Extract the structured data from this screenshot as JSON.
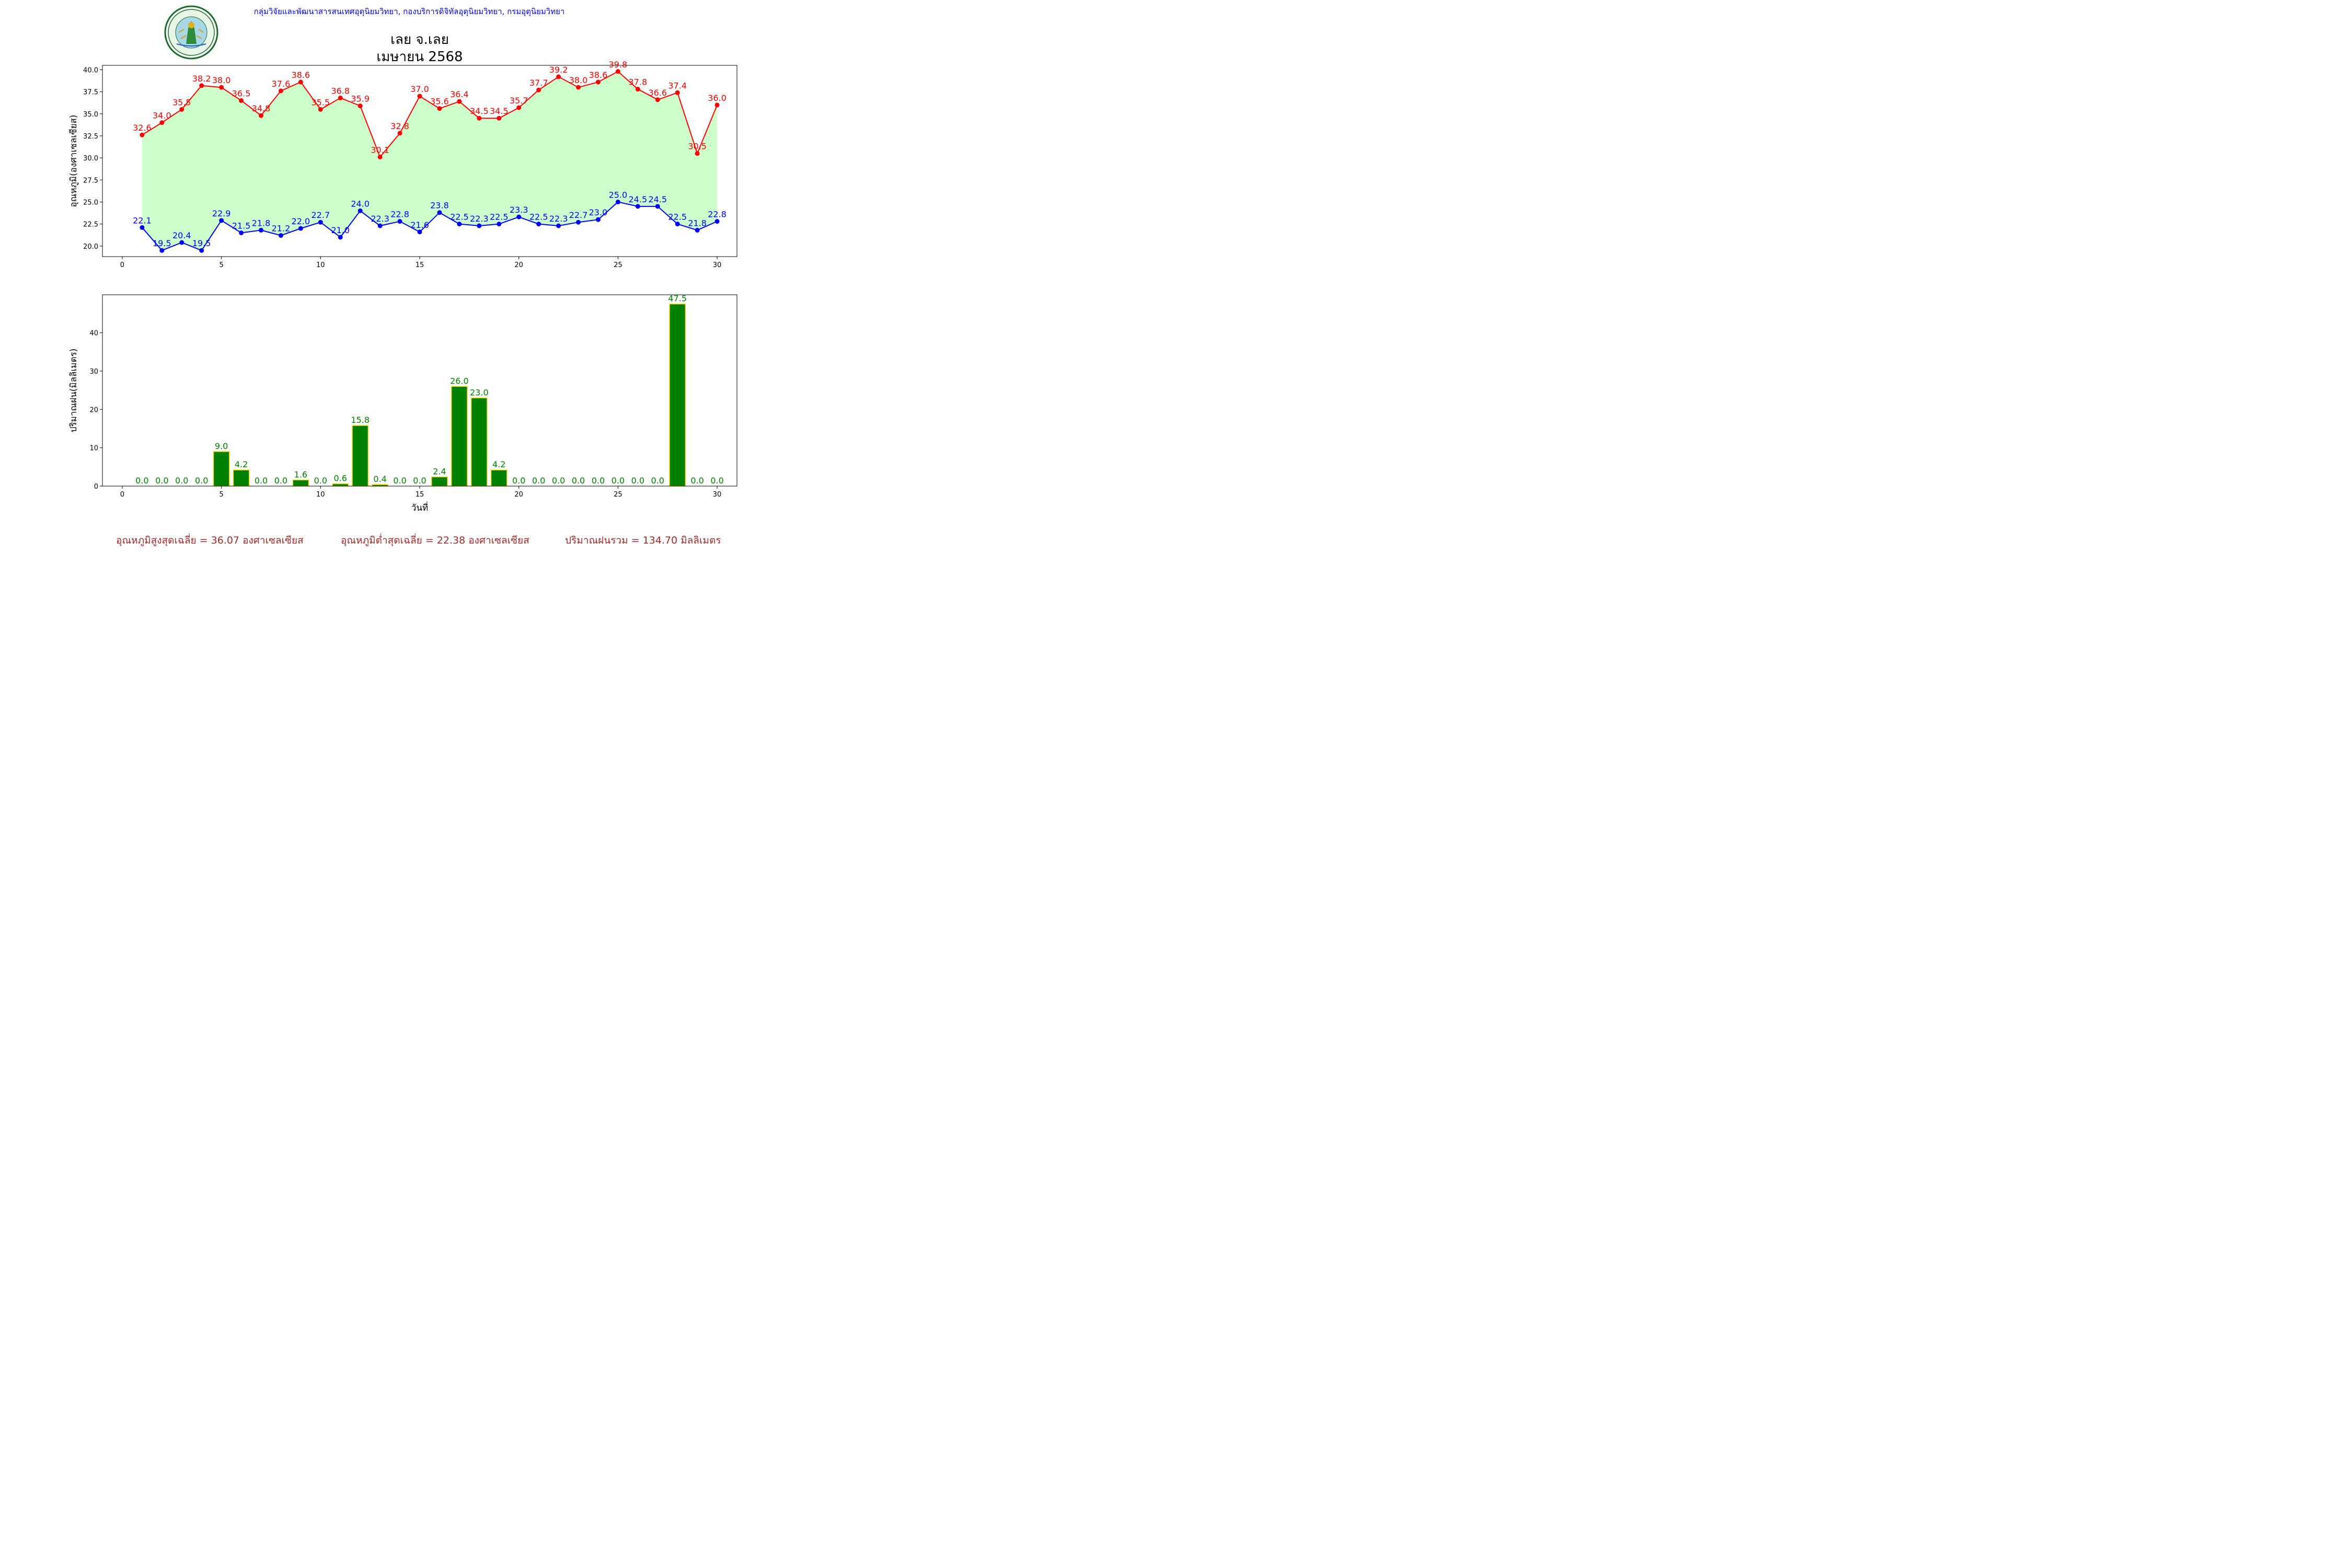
{
  "header": {
    "org_line": "กลุ่มวิจัยและพัฒนาสารสนเทศอุตุนิยมวิทยา, กองบริการดิจิทัลอุตุนิยมวิทยา, กรมอุตุนิยมวิทยา",
    "title_line1": "เลย จ.เลย",
    "title_line2": "เมษายน 2568",
    "logo": {
      "name": "thai-meteorological-department-seal",
      "top_text": "กรมอุตุนิยมวิทยา",
      "bottom_text": "METEOROLOGICAL DEPARTMENT"
    }
  },
  "colors": {
    "max_line": "#ff0000",
    "min_line": "#0000ff",
    "range_fill": "#ccffcc",
    "rain_bar": "#008000",
    "rain_bar_edge": "#ffd700",
    "org_text": "#0000ff",
    "footer_text": "#a52a2a"
  },
  "chart_data": [
    {
      "type": "line",
      "title": "",
      "xlabel": "",
      "ylabel": "อุณหภูมิ(องศาเซลเซียส)",
      "xlim": [
        -1,
        31
      ],
      "ylim": [
        18.8,
        40.5
      ],
      "xticks": [
        0,
        5,
        10,
        15,
        20,
        25,
        30
      ],
      "yticks": [
        20.0,
        22.5,
        25.0,
        27.5,
        30.0,
        32.5,
        35.0,
        37.5,
        40.0
      ],
      "x": [
        1,
        2,
        3,
        4,
        5,
        6,
        7,
        8,
        9,
        10,
        11,
        12,
        13,
        14,
        15,
        16,
        17,
        18,
        19,
        20,
        21,
        22,
        23,
        24,
        25,
        26,
        27,
        28,
        29,
        30
      ],
      "series": [
        {
          "values": [
            32.6,
            34.0,
            35.5,
            38.2,
            38.0,
            36.5,
            34.8,
            37.6,
            38.6,
            35.5,
            36.8,
            35.9,
            30.1,
            32.8,
            37.0,
            35.6,
            36.4,
            34.5,
            34.5,
            35.7,
            37.7,
            39.2,
            38.0,
            38.6,
            39.8,
            37.8,
            36.6,
            37.4,
            30.5,
            36.0
          ]
        },
        {
          "values": [
            22.1,
            19.5,
            20.4,
            19.5,
            22.9,
            21.5,
            21.8,
            21.2,
            22.0,
            22.7,
            21.0,
            24.0,
            22.3,
            22.8,
            21.6,
            23.8,
            22.5,
            22.3,
            22.5,
            23.3,
            22.5,
            22.3,
            22.7,
            23.0,
            25.0,
            24.5,
            24.5,
            22.5,
            21.8,
            22.8
          ]
        }
      ],
      "fill_between": true,
      "grid": false
    },
    {
      "type": "bar",
      "title": "",
      "xlabel": "วันที่",
      "ylabel": "ปริมาณฝน(มิลลิเมตร)",
      "xlim": [
        -1,
        31
      ],
      "ylim": [
        0,
        49.9
      ],
      "xticks": [
        0,
        5,
        10,
        15,
        20,
        25,
        30
      ],
      "yticks": [
        0,
        10,
        20,
        30,
        40
      ],
      "x": [
        1,
        2,
        3,
        4,
        5,
        6,
        7,
        8,
        9,
        10,
        11,
        12,
        13,
        14,
        15,
        16,
        17,
        18,
        19,
        20,
        21,
        22,
        23,
        24,
        25,
        26,
        27,
        28,
        29,
        30
      ],
      "values": [
        0.0,
        0.0,
        0.0,
        0.0,
        9.0,
        4.2,
        0.0,
        0.0,
        1.6,
        0.0,
        0.6,
        15.8,
        0.4,
        0.0,
        0.0,
        2.4,
        26.0,
        23.0,
        4.2,
        0.0,
        0.0,
        0.0,
        0.0,
        0.0,
        0.0,
        0.0,
        0.0,
        47.5,
        0.0,
        0.0
      ],
      "grid": false
    }
  ],
  "footer": {
    "avg_max": "อุณหภูมิสูงสุดเฉลี่ย = 36.07 องศาเซลเซียส",
    "avg_min": "อุณหภูมิต่ำสุดเฉลี่ย = 22.38 องศาเซลเซียส",
    "total_rain": "ปริมาณฝนรวม = 134.70 มิลลิเมตร"
  }
}
